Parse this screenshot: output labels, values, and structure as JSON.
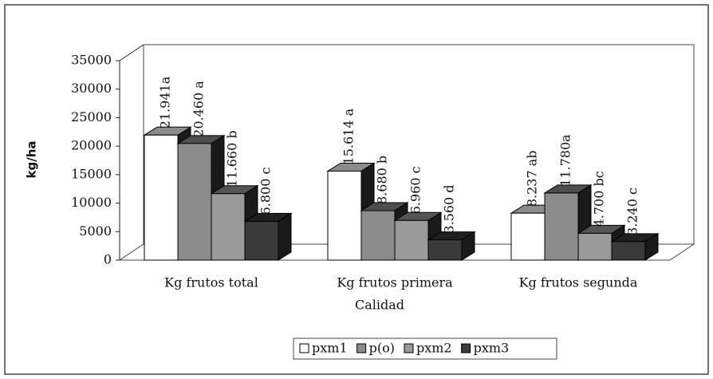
{
  "chart_data": {
    "type": "bar3d",
    "y_label": "kg/ha",
    "x_label": "Calidad",
    "categories": [
      "Kg  frutos total",
      "Kg frutos primera",
      "Kg frutos segunda"
    ],
    "series": [
      {
        "name": "pxm1",
        "color": "#ffffff",
        "values": [
          21941,
          15614,
          8237
        ],
        "value_labels": [
          "21.941a",
          "15.614 a",
          "8.237  ab"
        ]
      },
      {
        "name": "p(o)",
        "color": "#8c8c8c",
        "values": [
          20460,
          8680,
          11780
        ],
        "value_labels": [
          "20.460 a",
          "8.680 b",
          "11.780a"
        ]
      },
      {
        "name": "pxm2",
        "color": "#9a9a9a",
        "values": [
          11660,
          6960,
          4700
        ],
        "value_labels": [
          "11.660 b",
          "6.960 c",
          "4.700 bc"
        ]
      },
      {
        "name": "pxm3",
        "color": "#3a3a3a",
        "values": [
          6800,
          3560,
          3240
        ],
        "value_labels": [
          "6.800 c",
          "3.560 d",
          "3.240 c"
        ]
      }
    ],
    "ylim": [
      0,
      35000
    ],
    "yticks": [
      0,
      5000,
      10000,
      15000,
      20000,
      25000,
      30000,
      35000
    ],
    "legend": "bottom"
  }
}
